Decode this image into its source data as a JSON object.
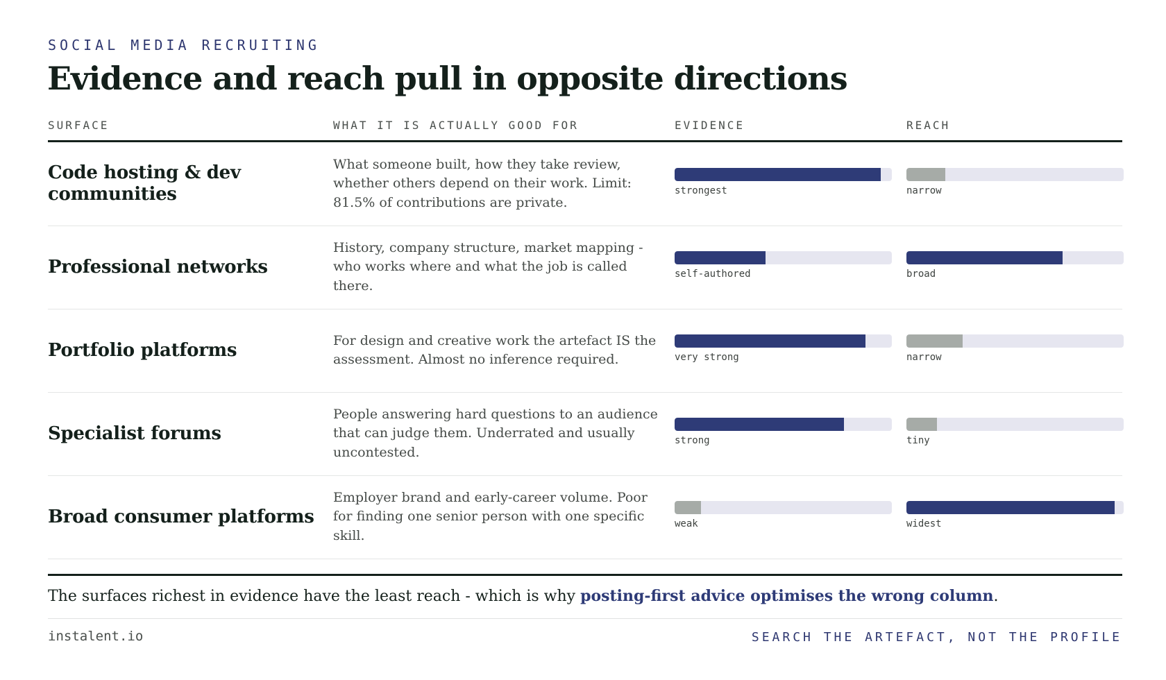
{
  "header": {
    "kicker": "SOCIAL MEDIA RECRUITING",
    "title": "Evidence and reach pull in opposite directions"
  },
  "columns": {
    "surface": "SURFACE",
    "good_for": "WHAT IT IS ACTUALLY GOOD FOR",
    "evidence": "EVIDENCE",
    "reach": "REACH"
  },
  "rows": [
    {
      "surface": "Code hosting & dev communities",
      "good_for": "What someone built, how they take review, whether others depend on their work. Limit: 81.5% of contributions are private.",
      "evidence": {
        "label": "strongest",
        "level": 0.95,
        "color": "#2e3b77"
      },
      "reach": {
        "label": "narrow",
        "level": 0.18,
        "color": "#a6aba7"
      }
    },
    {
      "surface": "Professional networks",
      "good_for": "History, company structure, market mapping - who works where and what the job is called there.",
      "evidence": {
        "label": "self-authored",
        "level": 0.42,
        "color": "#2e3b77"
      },
      "reach": {
        "label": "broad",
        "level": 0.72,
        "color": "#2e3b77"
      }
    },
    {
      "surface": "Portfolio platforms",
      "good_for": "For design and creative work the artefact IS the assessment. Almost no inference required.",
      "evidence": {
        "label": "very strong",
        "level": 0.88,
        "color": "#2e3b77"
      },
      "reach": {
        "label": "narrow",
        "level": 0.26,
        "color": "#a6aba7"
      }
    },
    {
      "surface": "Specialist forums",
      "good_for": "People answering hard questions to an audience that can judge them. Underrated and usually uncontested.",
      "evidence": {
        "label": "strong",
        "level": 0.78,
        "color": "#2e3b77"
      },
      "reach": {
        "label": "tiny",
        "level": 0.14,
        "color": "#a6aba7"
      }
    },
    {
      "surface": "Broad consumer platforms",
      "good_for": "Employer brand and early-career volume. Poor for finding one senior person with one specific skill.",
      "evidence": {
        "label": "weak",
        "level": 0.12,
        "color": "#a6aba7"
      },
      "reach": {
        "label": "widest",
        "level": 0.96,
        "color": "#2e3b77"
      }
    }
  ],
  "summary": {
    "lead": "The surfaces richest in evidence have the least reach - which is why ",
    "accent": "posting-first advice optimises the wrong column",
    "end": "."
  },
  "footer": {
    "site": "instalent.io",
    "tagline": "SEARCH THE ARTEFACT, NOT THE PROFILE"
  }
}
